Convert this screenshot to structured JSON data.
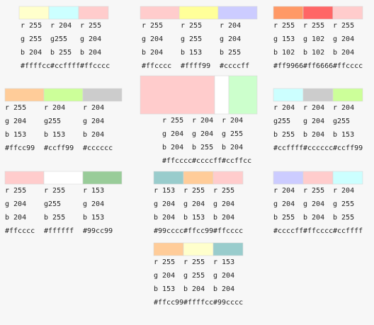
{
  "palettes": [
    {
      "swatches": [
        {
          "r": "r 255",
          "g": "g 255",
          "b": "b 204",
          "hex": "#ffffcc"
        },
        {
          "r": "r 204",
          "g": "g255",
          "b": "b 255",
          "hex": "#ccffff"
        },
        {
          "r": "r 255",
          "g": "g 204",
          "b": "b 204",
          "hex": "#ffcccc"
        }
      ]
    },
    {
      "swatches": [
        {
          "r": "r 255",
          "g": "g 204",
          "b": "b 204",
          "hex": "#ffcccc"
        },
        {
          "r": "r 255",
          "g": "g 255",
          "b": "b 153",
          "hex": "#ffff99"
        },
        {
          "r": "r 204",
          "g": "g 204",
          "b": "b 255",
          "hex": "#ccccff"
        }
      ]
    },
    {
      "swatches": [
        {
          "r": "r 255",
          "g": "g 153",
          "b": "b 102",
          "hex": "#ff9966"
        },
        {
          "r": "r 255",
          "g": "g 102",
          "b": "b 102",
          "hex": "#ff6666"
        },
        {
          "r": "r 255",
          "g": "g 204",
          "b": "b 204",
          "hex": "#ffcccc"
        }
      ]
    },
    {
      "swatches": [
        {
          "r": "r 255",
          "g": "g 204",
          "b": "b 153",
          "hex": "#ffcc99"
        },
        {
          "r": "r 204",
          "g": "g255",
          "b": "b 153",
          "hex": "#ccff99"
        },
        {
          "r": "r 204",
          "g": "g 204",
          "b": "b 204",
          "hex": "#cccccc"
        }
      ]
    },
    {
      "swatches": [
        {
          "r": "r 255",
          "g": "g 204",
          "b": "b 204",
          "hex": "#ffcccc"
        },
        {
          "r": "r 204",
          "g": "g 204",
          "b": "b 255",
          "hex": "#ccccff",
          "fill": "#ffffff"
        },
        {
          "r": "r 204",
          "g": "g 255",
          "b": "b 204",
          "hex": "#ccffcc"
        }
      ]
    },
    {
      "swatches": [
        {
          "r": "r 204",
          "g": "g255",
          "b": "b 255",
          "hex": "#ccffff"
        },
        {
          "r": "r 204",
          "g": "g 204",
          "b": "b 204",
          "hex": "#cccccc"
        },
        {
          "r": "r 204",
          "g": "g255",
          "b": "b 153",
          "hex": "#ccff99"
        }
      ]
    },
    {
      "swatches": [
        {
          "r": "r 255",
          "g": "g 204",
          "b": "b 204",
          "hex": "#ffcccc"
        },
        {
          "r": "r 255",
          "g": "g255",
          "b": "b 255",
          "hex": "#ffffff"
        },
        {
          "r": "r 153",
          "g": "g 204",
          "b": "b 153",
          "hex": "#99cc99"
        }
      ]
    },
    {
      "swatches": [
        {
          "r": "r 153",
          "g": "g 204",
          "b": "b 204",
          "hex": "#99cccc"
        },
        {
          "r": "r 255",
          "g": "g 204",
          "b": "b 153",
          "hex": "#ffcc99"
        },
        {
          "r": "r 255",
          "g": "g 204",
          "b": "b 204",
          "hex": "#ffcccc"
        }
      ]
    },
    {
      "swatches": [
        {
          "r": "r 204",
          "g": "g 204",
          "b": "b 255",
          "hex": "#ccccff"
        },
        {
          "r": "r 255",
          "g": "g 204",
          "b": "b 204",
          "hex": "#ffcccc"
        },
        {
          "r": "r 204",
          "g": "g 255",
          "b": "b 255",
          "hex": "#ccffff"
        }
      ]
    },
    {
      "swatches": [
        {
          "r": "r 255",
          "g": "g 204",
          "b": "b 153",
          "hex": "#ffcc99"
        },
        {
          "r": "r 255",
          "g": "g 255",
          "b": "b 204",
          "hex": "#ffffcc"
        },
        {
          "r": "r 153",
          "g": "g 204",
          "b": "b 204",
          "hex": "#99cccc"
        }
      ]
    }
  ]
}
